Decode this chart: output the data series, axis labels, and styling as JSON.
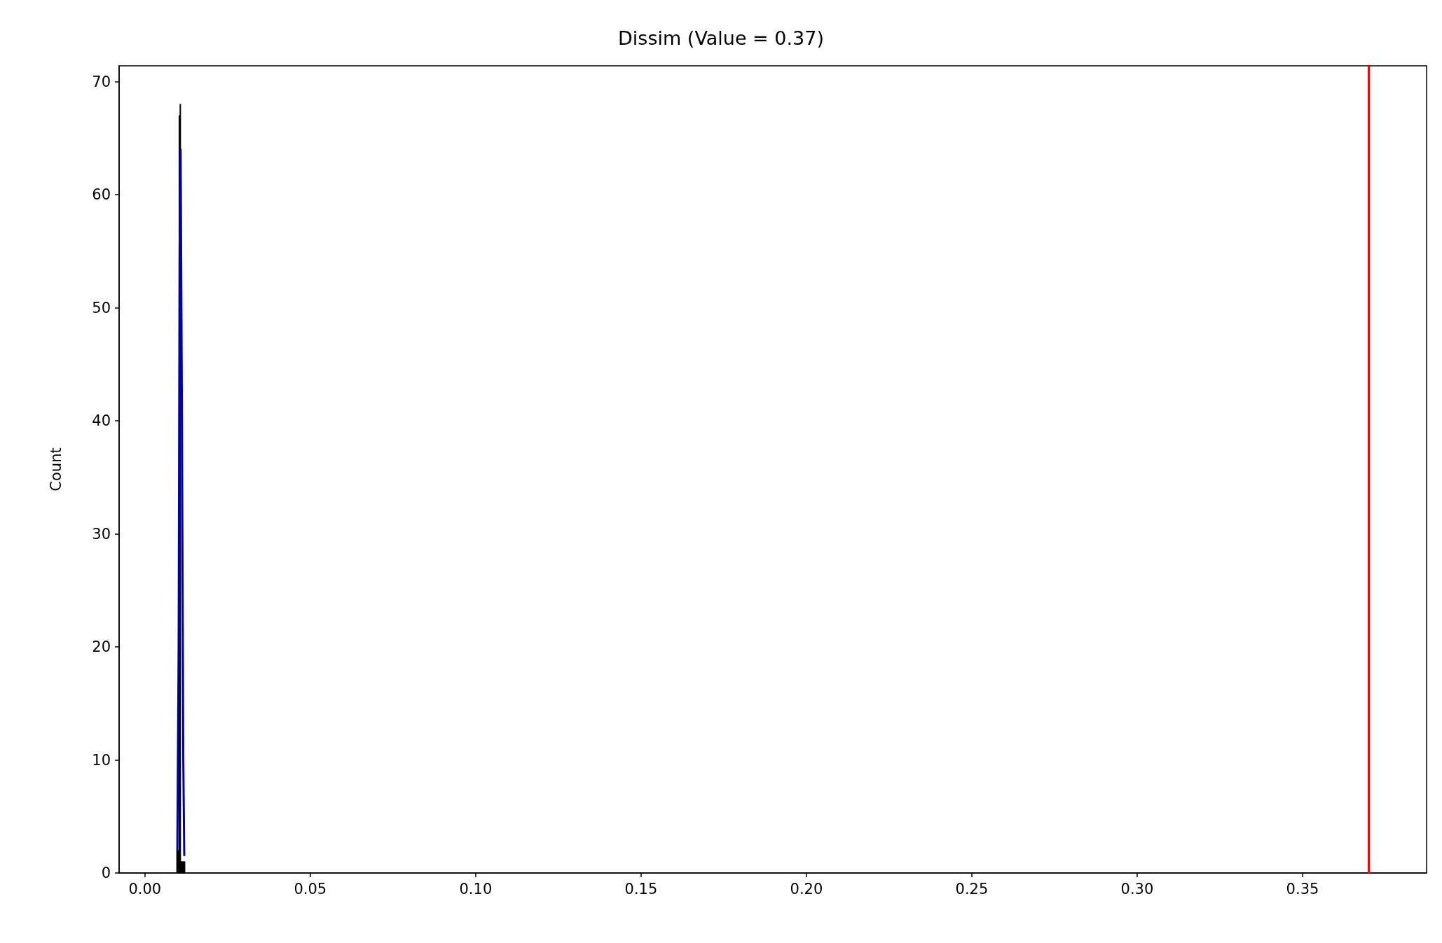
{
  "chart_data": {
    "type": "histogram",
    "title": "Dissim (Value = 0.37)",
    "ylabel": "Count",
    "bins": [
      0.0096,
      0.0103,
      0.0106,
      0.0108,
      0.0121
    ],
    "values": [
      2,
      67,
      68,
      1
    ],
    "color": "#000000",
    "series": [
      {
        "type": "line",
        "color": "#0000aa",
        "x": [
          0.0098,
          0.0102,
          0.0105,
          0.0108,
          0.0112,
          0.0116,
          0.0119
        ],
        "values": [
          2,
          20,
          55,
          64,
          40,
          10,
          1.5
        ]
      }
    ],
    "ref_lines": [
      {
        "axis": "x",
        "value": 0.37,
        "color": "#ff0000"
      }
    ],
    "xlim": [
      -0.0078,
      0.3875
    ],
    "ylim": [
      0,
      71.4
    ],
    "xticks": [
      {
        "value": 0,
        "label": "0.00"
      },
      {
        "value": 0.05,
        "label": "0.05"
      },
      {
        "value": 0.1,
        "label": "0.10"
      },
      {
        "value": 0.15,
        "label": "0.15"
      },
      {
        "value": 0.2,
        "label": "0.20"
      },
      {
        "value": 0.25,
        "label": "0.25"
      },
      {
        "value": 0.3,
        "label": "0.30"
      },
      {
        "value": 0.35,
        "label": "0.35"
      }
    ],
    "yticks": [
      0,
      10,
      20,
      30,
      40,
      50,
      60,
      70
    ],
    "grid": false
  }
}
